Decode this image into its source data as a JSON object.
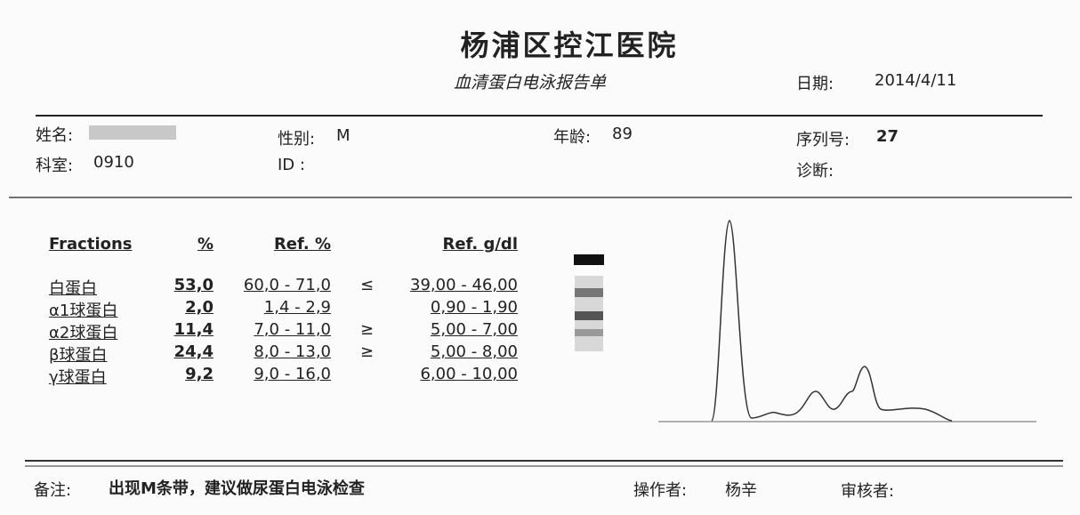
{
  "header": {
    "title": "杨浦区控江医院",
    "subtitle": "血清蛋白电泳报告单",
    "date_label": "日期:",
    "date": "2014/4/11"
  },
  "patient": {
    "name_label": "姓名:",
    "sex_label": "性别:",
    "sex": "M",
    "age_label": "年龄:",
    "age": "89",
    "serial_label": "序列号:",
    "serial": "27",
    "dept_label": "科室:",
    "dept": "0910",
    "id_label": "ID :",
    "diagnosis_label": "诊断:"
  },
  "table": {
    "headers": [
      "Fractions",
      "%",
      "Ref. %",
      "Ref. g/dl"
    ],
    "rows": [
      {
        "fraction": "白蛋白",
        "percent": "53,0",
        "ref_percent": "60,0 - 71,0",
        "flag": "≤",
        "ref_gdl": "39,00 - 46,00"
      },
      {
        "fraction": "α1球蛋白",
        "percent": "2,0",
        "ref_percent": "1,4 - 2,9",
        "ref_gdl": "0,90 - 1,90"
      },
      {
        "fraction": "α2球蛋白",
        "percent": "11,4",
        "ref_percent": "7,0 - 11,0",
        "flag": "≥",
        "ref_gdl": "5,00 - 7,00"
      },
      {
        "fraction": "β球蛋白",
        "percent": "24,4",
        "ref_percent": "8,0 - 13,0",
        "flag": "≥",
        "ref_gdl": "5,00 - 8,00"
      },
      {
        "fraction": "γ球蛋白",
        "percent": "9,2",
        "ref_percent": "9,0 - 16,0",
        "ref_gdl": "6,00 - 10,00"
      }
    ]
  },
  "footer": {
    "remark_label": "备注:",
    "remark": "出现M条带，建议做尿蛋白电泳检查",
    "operator_label": "操作者:",
    "operator": "杨辛",
    "reviewer_label": "审核者:"
  }
}
